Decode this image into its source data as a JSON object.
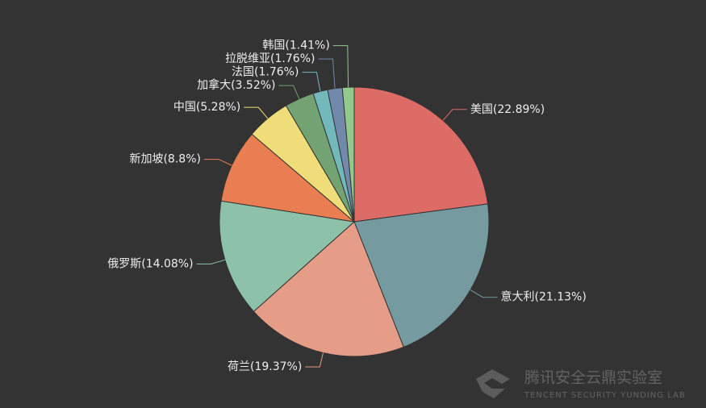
{
  "chart_data": {
    "type": "pie",
    "value_labels": [
      "美国(22.89%)",
      "意大利(21.13%)",
      "荷兰(19.37%)",
      "俄罗斯(14.08%)",
      "新加坡(8.8%)",
      "中国(5.28%)",
      "加拿大(3.52%)",
      "法国(1.76%)",
      "拉脱维亚(1.76%)",
      "韩国(1.41%)"
    ],
    "values": [
      22.89,
      21.13,
      19.37,
      14.08,
      8.8,
      5.28,
      3.52,
      1.76,
      1.76,
      1.41
    ],
    "colors": [
      "#dd6b66",
      "#759aa0",
      "#e69d87",
      "#8dc1a9",
      "#ea7e53",
      "#eedd78",
      "#73a373",
      "#73b9bc",
      "#7289ab",
      "#91ca8c"
    ]
  },
  "watermark": {
    "title": "腾讯安全云鼎实验室",
    "subtitle": "TENCENT SECURITY YUNDING LAB"
  }
}
